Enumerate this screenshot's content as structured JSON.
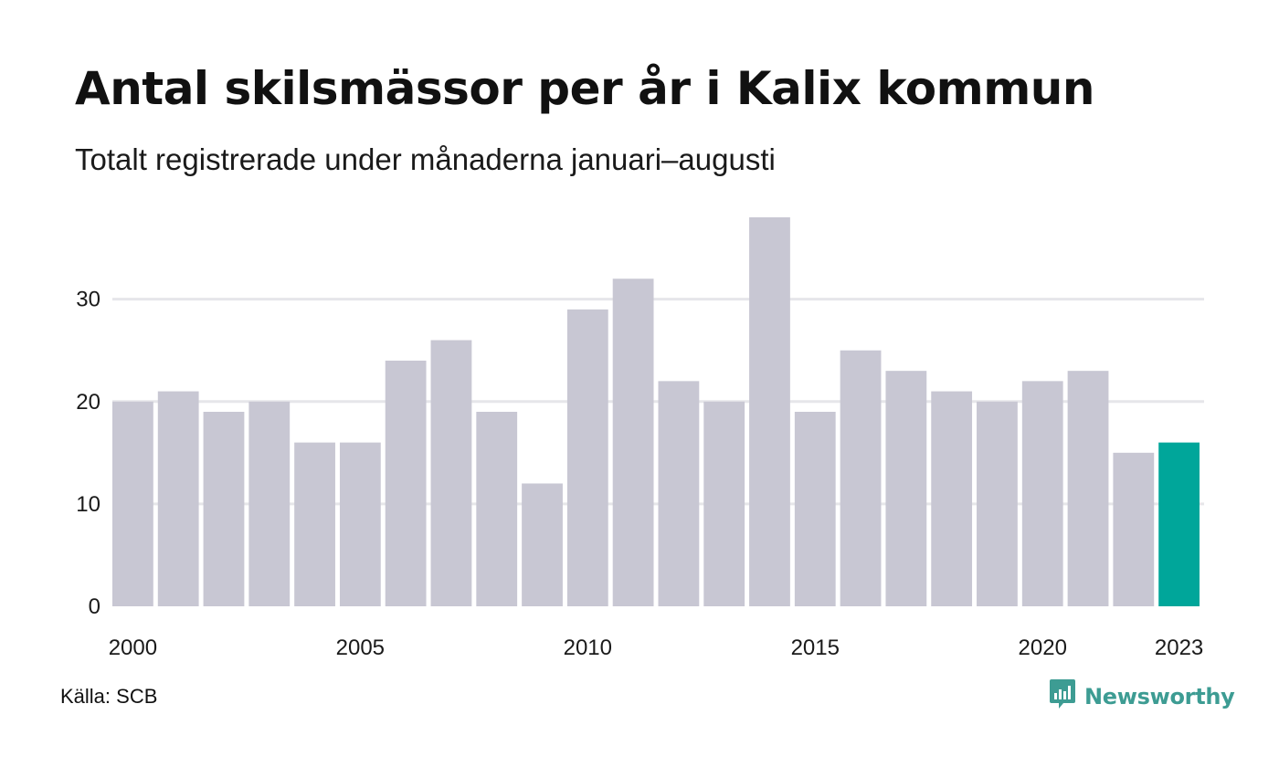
{
  "title": "Antal skilsmässor per år i Kalix kommun",
  "subtitle": "Totalt registrerade under månaderna januari–augusti",
  "source": "Källa: SCB",
  "brand": {
    "name": "Newsworthy",
    "icon": "newsworthy-logo-icon"
  },
  "colors": {
    "bar": "#c8c7d3",
    "highlight": "#00a69a",
    "grid": "#e6e6ea",
    "text": "#1a1a1a",
    "brand": "#3d9c93"
  },
  "chart_data": {
    "type": "bar",
    "categories": [
      "2000",
      "2001",
      "2002",
      "2003",
      "2004",
      "2005",
      "2006",
      "2007",
      "2008",
      "2009",
      "2010",
      "2011",
      "2012",
      "2013",
      "2014",
      "2015",
      "2016",
      "2017",
      "2018",
      "2019",
      "2020",
      "2021",
      "2022",
      "2023"
    ],
    "values": [
      20,
      21,
      19,
      20,
      16,
      16,
      24,
      26,
      19,
      12,
      29,
      32,
      22,
      20,
      38,
      19,
      25,
      23,
      21,
      20,
      22,
      23,
      15,
      16
    ],
    "highlight_index": 23,
    "xticks": [
      "2000",
      "2005",
      "2010",
      "2015",
      "2020",
      "2023"
    ],
    "yticks": [
      0,
      10,
      20,
      30
    ],
    "ylim": [
      0,
      38
    ],
    "xlabel": "",
    "ylabel": "",
    "grid": true
  }
}
